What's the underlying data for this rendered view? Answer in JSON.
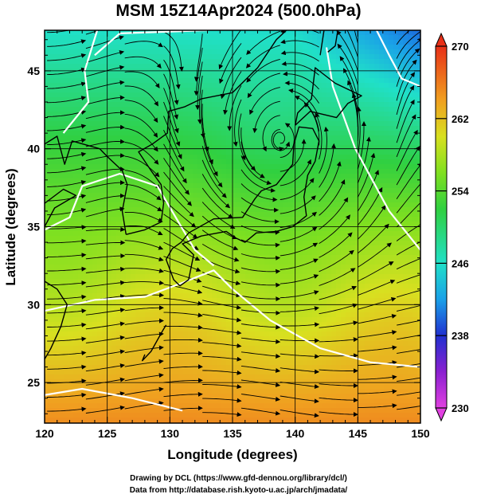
{
  "chart_data": {
    "type": "heatmap",
    "title": "MSM 15Z14Apr2024 (500.0hPa)",
    "xlabel": "Longitude (degrees)",
    "ylabel": "Latitude  (degrees)",
    "xlim": [
      120,
      150
    ],
    "ylim": [
      22.4,
      47.6
    ],
    "x_ticks": [
      120,
      125,
      130,
      135,
      140,
      145,
      150
    ],
    "y_ticks": [
      25,
      30,
      35,
      40,
      45
    ],
    "colorbar": {
      "min": 230,
      "max": 270,
      "tick_values": [
        230,
        238,
        246,
        254,
        262,
        270
      ],
      "tick_labels": [
        "230",
        "238",
        "246",
        "254",
        "262",
        "270"
      ]
    },
    "low_center": {
      "lon": 138.5,
      "lat": 40.0
    },
    "colors": {
      "warm": "#e8401a",
      "mid": "#3cd43c",
      "cool": "#2ce0b0",
      "contour": "#ffffff",
      "coast": "#000000"
    }
  },
  "footer": {
    "line1": "Drawing by DCL (https://www.gfd-dennou.org/library/dcl/)",
    "line2": "Data from http://database.rish.kyoto-u.ac.jp/arch/jmadata/"
  }
}
